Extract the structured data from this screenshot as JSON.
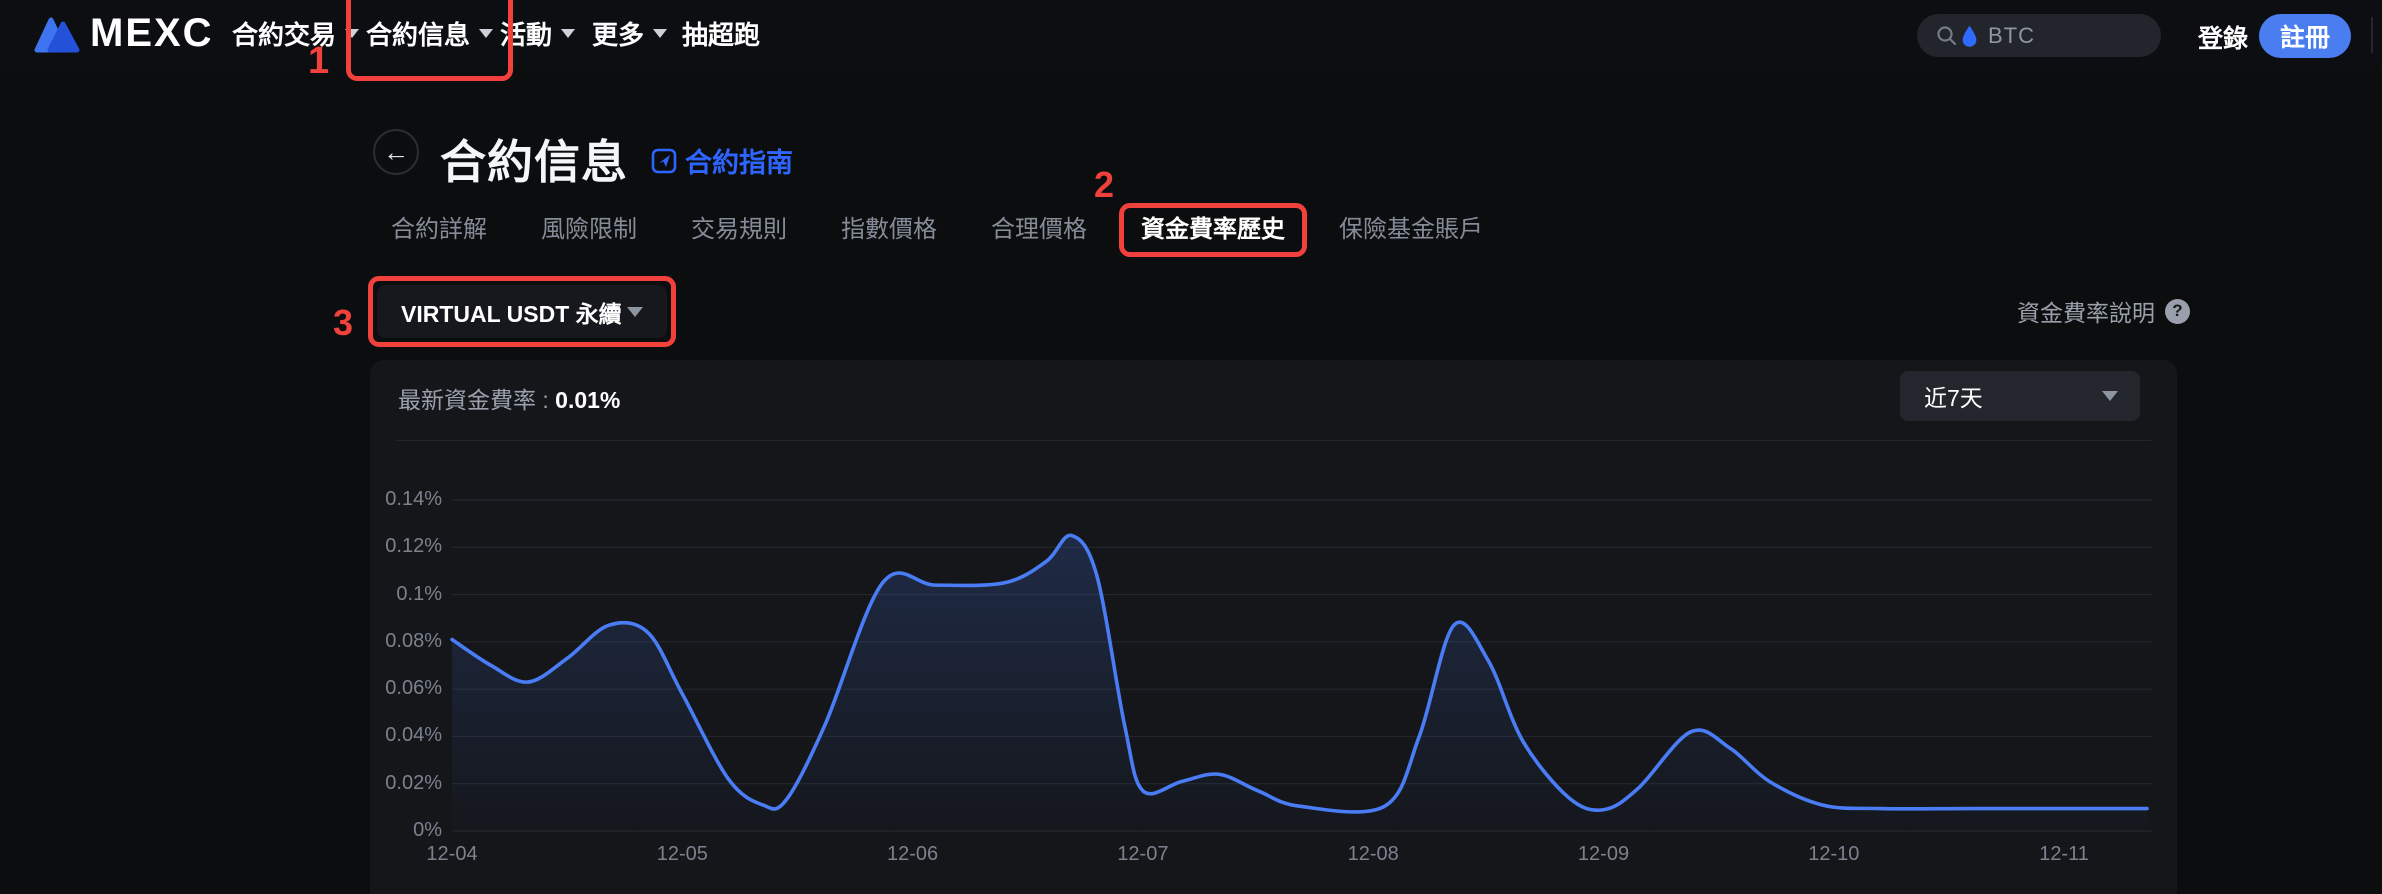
{
  "header": {
    "logo_text": "MEXC",
    "nav": [
      {
        "name": "contract-trading",
        "label": "合約交易",
        "caret": true,
        "x": 232
      },
      {
        "name": "contract-info",
        "label": "合約信息",
        "caret": true,
        "x": 366,
        "annotated": true
      },
      {
        "name": "activity",
        "label": "活動",
        "caret": true,
        "x": 500
      },
      {
        "name": "more",
        "label": "更多",
        "caret": true,
        "x": 592
      },
      {
        "name": "lucky-draw",
        "label": "抽超跑",
        "caret": false,
        "x": 682
      }
    ],
    "search": {
      "coin": "BTC"
    },
    "login_label": "登錄",
    "register_label": "註冊"
  },
  "annotations": {
    "color": "#f0413d",
    "step1": "1",
    "step2": "2",
    "step3": "3"
  },
  "page": {
    "title": "合約信息",
    "guide_link": "合約指南",
    "tabs": [
      {
        "name": "contract-details",
        "label": "合約詳解",
        "active": false
      },
      {
        "name": "risk-limit",
        "label": "風險限制",
        "active": false
      },
      {
        "name": "trading-rules",
        "label": "交易規則",
        "active": false
      },
      {
        "name": "index-price",
        "label": "指數價格",
        "active": false
      },
      {
        "name": "fair-price",
        "label": "合理價格",
        "active": false
      },
      {
        "name": "funding-rate-history",
        "label": "資金費率歷史",
        "active": true,
        "annotated": true
      },
      {
        "name": "insurance-fund",
        "label": "保險基金賬戶",
        "active": false
      }
    ],
    "contract_select": {
      "value": "VIRTUAL USDT 永續"
    },
    "funding_help": "資金費率說明"
  },
  "card": {
    "latest_rate_label": "最新資金費率 : ",
    "latest_rate_value": "0.01%",
    "range_select": {
      "value": "近7天"
    }
  },
  "chart_data": {
    "type": "line",
    "title": "資金費率歷史",
    "unit": "%",
    "line_color": "#4a7df5",
    "fill_color": "#4a7df5",
    "grid": true,
    "ylim": [
      0,
      0.14
    ],
    "y_ticks": [
      "0%",
      "0.02%",
      "0.04%",
      "0.06%",
      "0.08%",
      "0.1%",
      "0.12%",
      "0.14%"
    ],
    "x_labels": [
      "12-04",
      "12-05",
      "12-06",
      "12-07",
      "12-08",
      "12-09",
      "12-10",
      "12-11"
    ],
    "series": [
      {
        "name": "funding_rate_pct",
        "points": [
          [
            0.0,
            0.081
          ],
          [
            0.17,
            0.07
          ],
          [
            0.33,
            0.063
          ],
          [
            0.5,
            0.073
          ],
          [
            0.68,
            0.087
          ],
          [
            0.85,
            0.084
          ],
          [
            1.0,
            0.058
          ],
          [
            1.2,
            0.022
          ],
          [
            1.35,
            0.011
          ],
          [
            1.45,
            0.013
          ],
          [
            1.62,
            0.045
          ],
          [
            1.87,
            0.105
          ],
          [
            2.1,
            0.104
          ],
          [
            2.4,
            0.105
          ],
          [
            2.58,
            0.114
          ],
          [
            2.69,
            0.125
          ],
          [
            2.8,
            0.108
          ],
          [
            2.92,
            0.045
          ],
          [
            3.0,
            0.017
          ],
          [
            3.17,
            0.021
          ],
          [
            3.33,
            0.024
          ],
          [
            3.5,
            0.017
          ],
          [
            3.68,
            0.0105
          ],
          [
            4.05,
            0.0105
          ],
          [
            4.2,
            0.04
          ],
          [
            4.35,
            0.087
          ],
          [
            4.5,
            0.072
          ],
          [
            4.65,
            0.038
          ],
          [
            4.85,
            0.014
          ],
          [
            5.0,
            0.009
          ],
          [
            5.15,
            0.018
          ],
          [
            5.38,
            0.042
          ],
          [
            5.55,
            0.035
          ],
          [
            5.72,
            0.021
          ],
          [
            5.95,
            0.011
          ],
          [
            6.2,
            0.0095
          ],
          [
            6.6,
            0.0095
          ],
          [
            7.0,
            0.0095
          ],
          [
            7.36,
            0.0095
          ]
        ]
      }
    ]
  }
}
